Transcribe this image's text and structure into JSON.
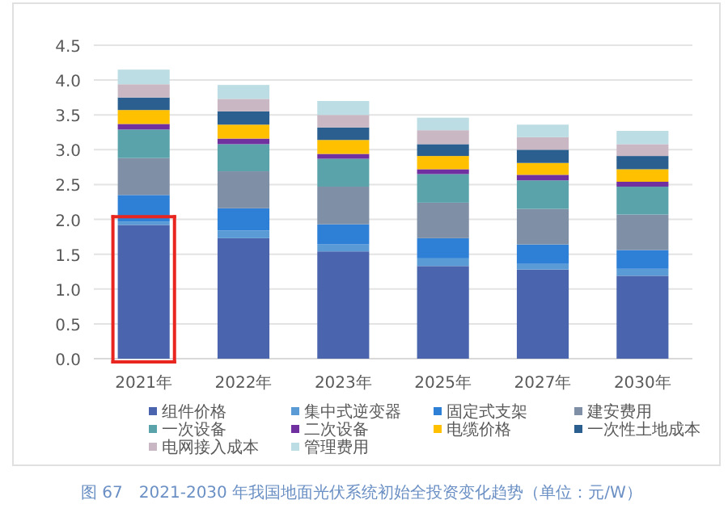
{
  "chart_data": {
    "type": "bar",
    "stacked": true,
    "categories": [
      "2021年",
      "2022年",
      "2023年",
      "2025年",
      "2027年",
      "2030年"
    ],
    "ylim": [
      0,
      4.5
    ],
    "yticks": [
      {
        "value": 0,
        "label": "0.0"
      },
      {
        "value": 0.5,
        "label": "0.5"
      },
      {
        "value": 1,
        "label": "1.0"
      },
      {
        "value": 1.5,
        "label": "1.5"
      },
      {
        "value": 2,
        "label": "2.0"
      },
      {
        "value": 2.5,
        "label": "2.5"
      },
      {
        "value": 3,
        "label": "3.0"
      },
      {
        "value": 3.5,
        "label": "3.5"
      },
      {
        "value": 4,
        "label": "4.0"
      },
      {
        "value": 4.5,
        "label": "4.5"
      }
    ],
    "grid": "y",
    "legend": "bottom",
    "series": [
      {
        "name": "组件价格",
        "color": "#4a65ad",
        "values": [
          1.92,
          1.73,
          1.54,
          1.33,
          1.28,
          1.19
        ]
      },
      {
        "name": "集中式逆变器",
        "color": "#5b9bd5",
        "values": [
          0.05,
          0.11,
          0.1,
          0.11,
          0.08,
          0.1
        ]
      },
      {
        "name": "固定式支架",
        "color": "#2e7fd6",
        "values": [
          0.38,
          0.32,
          0.29,
          0.29,
          0.28,
          0.27
        ]
      },
      {
        "name": "建安费用",
        "color": "#7f8fa6",
        "values": [
          0.53,
          0.53,
          0.54,
          0.51,
          0.51,
          0.51
        ]
      },
      {
        "name": "一次设备",
        "color": "#5ba3ab",
        "values": [
          0.41,
          0.39,
          0.4,
          0.41,
          0.41,
          0.4
        ]
      },
      {
        "name": "二次设备",
        "color": "#7030a0",
        "values": [
          0.08,
          0.08,
          0.07,
          0.07,
          0.08,
          0.07
        ]
      },
      {
        "name": "电缆价格",
        "color": "#ffc000",
        "values": [
          0.2,
          0.2,
          0.2,
          0.19,
          0.17,
          0.18
        ]
      },
      {
        "name": "一次性土地成本",
        "color": "#2a5f8f",
        "values": [
          0.18,
          0.19,
          0.18,
          0.17,
          0.19,
          0.19
        ]
      },
      {
        "name": "电网接入成本",
        "color": "#c9b8c3",
        "values": [
          0.19,
          0.18,
          0.18,
          0.2,
          0.18,
          0.17
        ]
      },
      {
        "name": "管理费用",
        "color": "#bcdde3",
        "values": [
          0.21,
          0.2,
          0.2,
          0.18,
          0.18,
          0.19
        ]
      }
    ],
    "annotations": [
      "图 67　2021-2030 年我国地面光伏系统初始全投资变化趋势（单位：元/W）"
    ]
  }
}
